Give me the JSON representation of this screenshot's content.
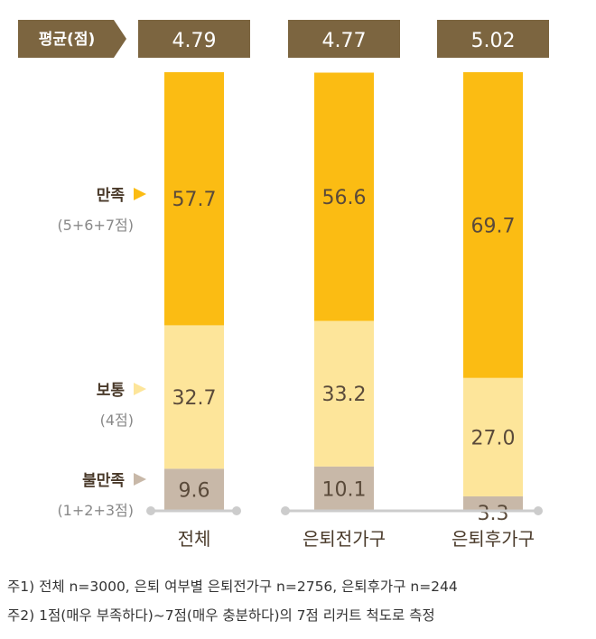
{
  "chart_data": {
    "type": "bar",
    "stacked": true,
    "orientation": "vertical",
    "average_label": "평균(점)",
    "categories": [
      "전체",
      "은퇴전가구",
      "은퇴후가구"
    ],
    "averages": [
      "4.79",
      "4.77",
      "5.02"
    ],
    "series": [
      {
        "key": "dissatisfied",
        "name": "불만족",
        "sub": "(1+2+3점)",
        "values": [
          9.6,
          10.1,
          3.3
        ],
        "labels": [
          "9.6",
          "10.1",
          "3.3"
        ],
        "color": "#c8b8a8"
      },
      {
        "key": "neutral",
        "name": "보통",
        "sub": "(4점)",
        "values": [
          32.7,
          33.2,
          27.0
        ],
        "labels": [
          "32.7",
          "33.2",
          "27.0"
        ],
        "color": "#fde59a"
      },
      {
        "key": "satisfied",
        "name": "만족",
        "sub": "(5+6+7점)",
        "values": [
          57.7,
          56.6,
          69.7
        ],
        "labels": [
          "57.7",
          "56.6",
          "69.7"
        ],
        "color": "#fbbc13"
      }
    ],
    "ylim": [
      0,
      100
    ],
    "xlabel": "",
    "ylabel": ""
  },
  "colors": {
    "header_box": "#7c6540",
    "arrow_satisfied": "#fbbc13",
    "arrow_neutral": "#fde59a",
    "arrow_dissatisfied": "#c8b8a8",
    "baseline": "#cccccc"
  },
  "notes": {
    "note1": "주1) 전체 n=3000, 은퇴 여부별 은퇴전가구 n=2756, 은퇴후가구 n=244",
    "note2": "주2) 1점(매우 부족하다)~7점(매우 충분하다)의 7점 리커트 척도로 측정"
  }
}
